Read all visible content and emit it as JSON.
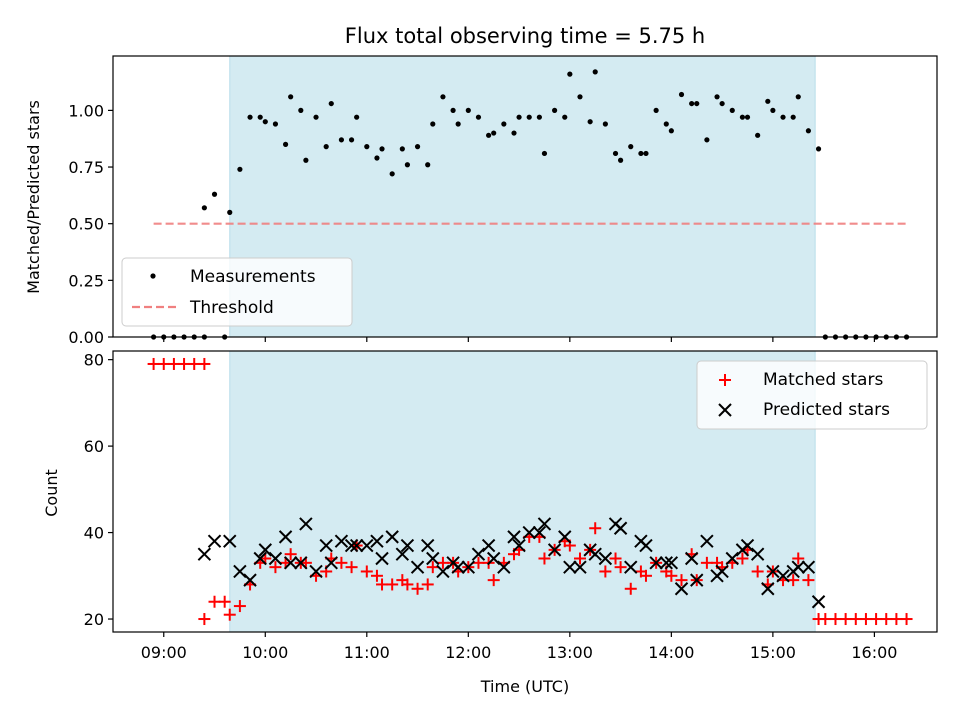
{
  "chart_data": [
    {
      "type": "scatter",
      "title": "Flux total observing time = 5.75 h",
      "xlabel": "",
      "ylabel": "Matched/Predicted stars",
      "xlim": [
        "08:30",
        "16:37"
      ],
      "ylim": [
        0,
        1.24
      ],
      "yticks": [
        "0.00",
        "0.25",
        "0.50",
        "0.75",
        "1.00"
      ],
      "yticks_values": [
        0,
        0.25,
        0.5,
        0.75,
        1.0
      ],
      "shaded_span": [
        "09:39",
        "15:25"
      ],
      "shaded_color": "#add8e6",
      "grid": false,
      "legend_position": "lower-left",
      "series": [
        {
          "name": "Measurements",
          "marker": "dot",
          "color": "#000000",
          "points": [
            [
              "08:54",
              0
            ],
            [
              "09:00",
              0
            ],
            [
              "09:06",
              0
            ],
            [
              "09:12",
              0
            ],
            [
              "09:18",
              0
            ],
            [
              "09:24",
              0
            ],
            [
              "09:24",
              0.57
            ],
            [
              "09:30",
              0.63
            ],
            [
              "09:36",
              0
            ],
            [
              "09:39",
              0.55
            ],
            [
              "09:45",
              0.74
            ],
            [
              "09:51",
              0.97
            ],
            [
              "09:57",
              0.97
            ],
            [
              "10:00",
              0.95
            ],
            [
              "10:06",
              0.94
            ],
            [
              "10:12",
              0.85
            ],
            [
              "10:15",
              1.06
            ],
            [
              "10:21",
              1.0
            ],
            [
              "10:24",
              0.78
            ],
            [
              "10:30",
              0.97
            ],
            [
              "10:36",
              0.84
            ],
            [
              "10:39",
              1.03
            ],
            [
              "10:45",
              0.87
            ],
            [
              "10:51",
              0.87
            ],
            [
              "10:54",
              0.97
            ],
            [
              "11:00",
              0.84
            ],
            [
              "11:06",
              0.79
            ],
            [
              "11:09",
              0.83
            ],
            [
              "11:15",
              0.72
            ],
            [
              "11:21",
              0.83
            ],
            [
              "11:24",
              0.76
            ],
            [
              "11:30",
              0.84
            ],
            [
              "11:36",
              0.76
            ],
            [
              "11:39",
              0.94
            ],
            [
              "11:45",
              1.06
            ],
            [
              "11:51",
              1.0
            ],
            [
              "11:54",
              0.94
            ],
            [
              "12:00",
              1.0
            ],
            [
              "12:06",
              0.97
            ],
            [
              "12:12",
              0.89
            ],
            [
              "12:15",
              0.9
            ],
            [
              "12:21",
              0.94
            ],
            [
              "12:27",
              0.9
            ],
            [
              "12:30",
              0.97
            ],
            [
              "12:36",
              0.97
            ],
            [
              "12:42",
              0.97
            ],
            [
              "12:45",
              0.81
            ],
            [
              "12:51",
              1.0
            ],
            [
              "12:57",
              0.97
            ],
            [
              "13:00",
              1.16
            ],
            [
              "13:06",
              1.06
            ],
            [
              "13:12",
              0.95
            ],
            [
              "13:15",
              1.17
            ],
            [
              "13:21",
              0.94
            ],
            [
              "13:27",
              0.81
            ],
            [
              "13:30",
              0.78
            ],
            [
              "13:36",
              0.84
            ],
            [
              "13:42",
              0.81
            ],
            [
              "13:45",
              0.81
            ],
            [
              "13:51",
              1.0
            ],
            [
              "13:57",
              0.94
            ],
            [
              "14:00",
              0.91
            ],
            [
              "14:06",
              1.07
            ],
            [
              "14:12",
              1.03
            ],
            [
              "14:15",
              1.03
            ],
            [
              "14:21",
              0.87
            ],
            [
              "14:27",
              1.06
            ],
            [
              "14:30",
              1.03
            ],
            [
              "14:36",
              1.0
            ],
            [
              "14:42",
              0.97
            ],
            [
              "14:45",
              0.97
            ],
            [
              "14:51",
              0.89
            ],
            [
              "14:57",
              1.04
            ],
            [
              "15:00",
              1.0
            ],
            [
              "15:06",
              0.97
            ],
            [
              "15:12",
              0.97
            ],
            [
              "15:15",
              1.06
            ],
            [
              "15:21",
              0.91
            ],
            [
              "15:27",
              0.83
            ],
            [
              "15:31",
              0
            ],
            [
              "15:37",
              0
            ],
            [
              "15:43",
              0
            ],
            [
              "15:49",
              0
            ],
            [
              "15:55",
              0
            ],
            [
              "16:01",
              0
            ],
            [
              "16:07",
              0
            ],
            [
              "16:13",
              0
            ],
            [
              "16:19",
              0
            ]
          ]
        },
        {
          "name": "Threshold",
          "marker": "dashed-line",
          "color": "#f08080",
          "points": [
            [
              "08:54",
              0.5
            ],
            [
              "16:19",
              0.5
            ]
          ]
        }
      ]
    },
    {
      "type": "scatter",
      "title": "",
      "xlabel": "Time (UTC)",
      "ylabel": "Count",
      "xlim": [
        "08:30",
        "16:37"
      ],
      "ylim": [
        17,
        82
      ],
      "xticks": [
        "09:00",
        "10:00",
        "11:00",
        "12:00",
        "13:00",
        "14:00",
        "15:00",
        "16:00"
      ],
      "yticks": [
        "20",
        "40",
        "60",
        "80"
      ],
      "yticks_values": [
        20,
        40,
        60,
        80
      ],
      "shaded_span": [
        "09:39",
        "15:25"
      ],
      "shaded_color": "#add8e6",
      "grid": false,
      "legend_position": "top-right",
      "series": [
        {
          "name": "Matched stars",
          "marker": "plus",
          "color": "#ff0000",
          "points": [
            [
              "08:54",
              79
            ],
            [
              "09:00",
              79
            ],
            [
              "09:06",
              79
            ],
            [
              "09:12",
              79
            ],
            [
              "09:18",
              79
            ],
            [
              "09:24",
              79
            ],
            [
              "09:24",
              20
            ],
            [
              "09:30",
              24
            ],
            [
              "09:36",
              24
            ],
            [
              "09:39",
              21
            ],
            [
              "09:45",
              23
            ],
            [
              "09:51",
              28
            ],
            [
              "09:57",
              33
            ],
            [
              "10:00",
              34
            ],
            [
              "10:06",
              32
            ],
            [
              "10:12",
              33
            ],
            [
              "10:15",
              35
            ],
            [
              "10:21",
              33
            ],
            [
              "10:24",
              33
            ],
            [
              "10:30",
              30
            ],
            [
              "10:36",
              31
            ],
            [
              "10:39",
              34
            ],
            [
              "10:45",
              33
            ],
            [
              "10:51",
              32
            ],
            [
              "10:54",
              37
            ],
            [
              "11:00",
              31
            ],
            [
              "11:06",
              30
            ],
            [
              "11:09",
              28
            ],
            [
              "11:15",
              28
            ],
            [
              "11:21",
              29
            ],
            [
              "11:24",
              28
            ],
            [
              "11:30",
              27
            ],
            [
              "11:36",
              28
            ],
            [
              "11:39",
              32
            ],
            [
              "11:45",
              33
            ],
            [
              "11:51",
              33
            ],
            [
              "11:54",
              31
            ],
            [
              "12:00",
              32
            ],
            [
              "12:06",
              33
            ],
            [
              "12:12",
              33
            ],
            [
              "12:15",
              29
            ],
            [
              "12:21",
              33
            ],
            [
              "12:27",
              35
            ],
            [
              "12:30",
              36
            ],
            [
              "12:36",
              39
            ],
            [
              "12:42",
              39
            ],
            [
              "12:45",
              34
            ],
            [
              "12:51",
              36
            ],
            [
              "12:57",
              38
            ],
            [
              "13:00",
              37
            ],
            [
              "13:06",
              34
            ],
            [
              "13:12",
              36
            ],
            [
              "13:15",
              41
            ],
            [
              "13:21",
              31
            ],
            [
              "13:27",
              34
            ],
            [
              "13:30",
              32
            ],
            [
              "13:36",
              27
            ],
            [
              "13:42",
              31
            ],
            [
              "13:45",
              30
            ],
            [
              "13:51",
              33
            ],
            [
              "13:57",
              31
            ],
            [
              "14:00",
              30
            ],
            [
              "14:06",
              29
            ],
            [
              "14:12",
              35
            ],
            [
              "14:15",
              29
            ],
            [
              "14:21",
              33
            ],
            [
              "14:27",
              33
            ],
            [
              "14:30",
              32
            ],
            [
              "14:36",
              33
            ],
            [
              "14:42",
              34
            ],
            [
              "14:45",
              36
            ],
            [
              "14:51",
              31
            ],
            [
              "14:57",
              28
            ],
            [
              "15:00",
              31
            ],
            [
              "15:06",
              29
            ],
            [
              "15:12",
              29
            ],
            [
              "15:15",
              34
            ],
            [
              "15:21",
              29
            ],
            [
              "15:27",
              20
            ],
            [
              "15:31",
              20
            ],
            [
              "15:37",
              20
            ],
            [
              "15:43",
              20
            ],
            [
              "15:49",
              20
            ],
            [
              "15:55",
              20
            ],
            [
              "16:01",
              20
            ],
            [
              "16:07",
              20
            ],
            [
              "16:13",
              20
            ],
            [
              "16:19",
              20
            ]
          ]
        },
        {
          "name": "Predicted stars",
          "marker": "x",
          "color": "#000000",
          "points": [
            [
              "09:24",
              35
            ],
            [
              "09:30",
              38
            ],
            [
              "09:39",
              38
            ],
            [
              "09:45",
              31
            ],
            [
              "09:51",
              29
            ],
            [
              "09:57",
              34
            ],
            [
              "10:00",
              36
            ],
            [
              "10:06",
              34
            ],
            [
              "10:12",
              39
            ],
            [
              "10:15",
              33
            ],
            [
              "10:21",
              33
            ],
            [
              "10:24",
              42
            ],
            [
              "10:30",
              31
            ],
            [
              "10:36",
              37
            ],
            [
              "10:39",
              33
            ],
            [
              "10:45",
              38
            ],
            [
              "10:51",
              37
            ],
            [
              "10:54",
              37
            ],
            [
              "11:00",
              37
            ],
            [
              "11:06",
              38
            ],
            [
              "11:09",
              34
            ],
            [
              "11:15",
              39
            ],
            [
              "11:21",
              35
            ],
            [
              "11:24",
              37
            ],
            [
              "11:30",
              32
            ],
            [
              "11:36",
              37
            ],
            [
              "11:39",
              34
            ],
            [
              "11:45",
              31
            ],
            [
              "11:51",
              33
            ],
            [
              "11:54",
              32
            ],
            [
              "12:00",
              32
            ],
            [
              "12:06",
              35
            ],
            [
              "12:12",
              37
            ],
            [
              "12:15",
              34
            ],
            [
              "12:21",
              32
            ],
            [
              "12:27",
              39
            ],
            [
              "12:30",
              37
            ],
            [
              "12:36",
              40
            ],
            [
              "12:42",
              40
            ],
            [
              "12:45",
              42
            ],
            [
              "12:51",
              36
            ],
            [
              "12:57",
              39
            ],
            [
              "13:00",
              32
            ],
            [
              "13:06",
              32
            ],
            [
              "13:12",
              36
            ],
            [
              "13:15",
              35
            ],
            [
              "13:21",
              34
            ],
            [
              "13:27",
              42
            ],
            [
              "13:30",
              41
            ],
            [
              "13:36",
              32
            ],
            [
              "13:42",
              38
            ],
            [
              "13:45",
              37
            ],
            [
              "13:51",
              33
            ],
            [
              "13:57",
              33
            ],
            [
              "14:00",
              33
            ],
            [
              "14:06",
              27
            ],
            [
              "14:12",
              34
            ],
            [
              "14:15",
              29
            ],
            [
              "14:21",
              38
            ],
            [
              "14:27",
              30
            ],
            [
              "14:30",
              31
            ],
            [
              "14:36",
              34
            ],
            [
              "14:42",
              36
            ],
            [
              "14:45",
              37
            ],
            [
              "14:51",
              35
            ],
            [
              "14:57",
              27
            ],
            [
              "15:00",
              31
            ],
            [
              "15:06",
              30
            ],
            [
              "15:12",
              31
            ],
            [
              "15:15",
              32
            ],
            [
              "15:21",
              32
            ],
            [
              "15:27",
              24
            ]
          ]
        }
      ]
    }
  ]
}
